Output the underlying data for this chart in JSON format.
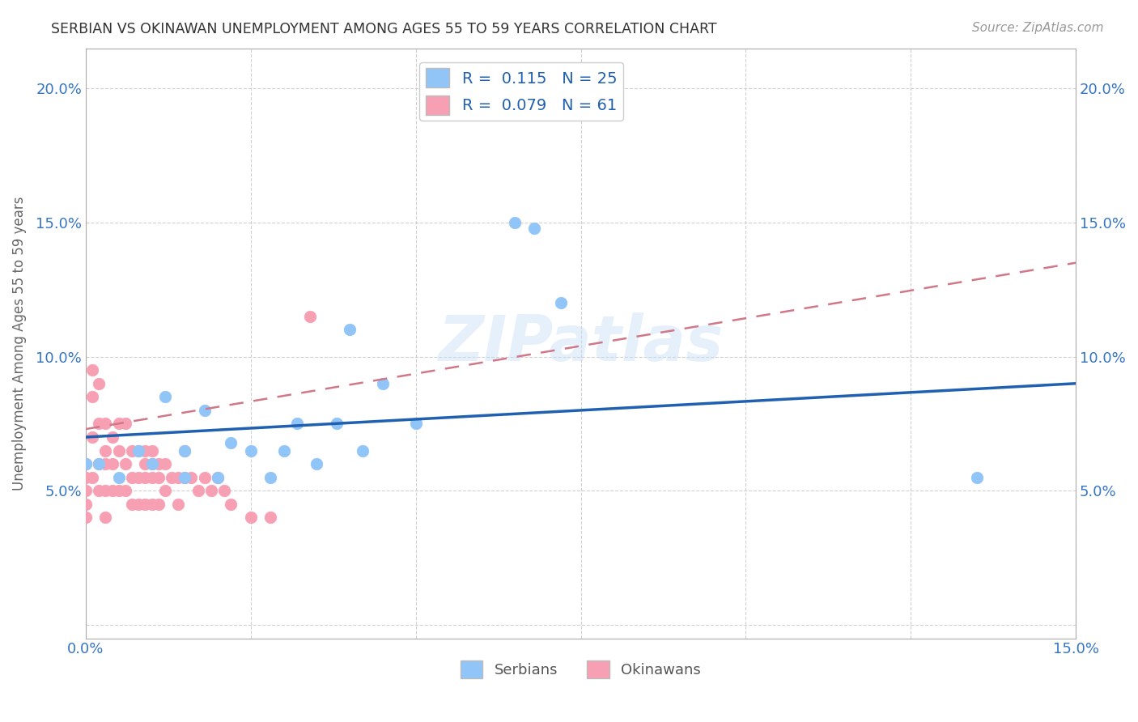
{
  "title": "SERBIAN VS OKINAWAN UNEMPLOYMENT AMONG AGES 55 TO 59 YEARS CORRELATION CHART",
  "source": "Source: ZipAtlas.com",
  "ylabel": "Unemployment Among Ages 55 to 59 years",
  "xlim": [
    0.0,
    0.15
  ],
  "ylim": [
    -0.005,
    0.215
  ],
  "xticks": [
    0.0,
    0.025,
    0.05,
    0.075,
    0.1,
    0.125,
    0.15
  ],
  "yticks": [
    0.0,
    0.05,
    0.1,
    0.15,
    0.2
  ],
  "ytick_labels": [
    "",
    "5.0%",
    "10.0%",
    "15.0%",
    "20.0%"
  ],
  "xtick_labels": [
    "0.0%",
    "",
    "",
    "",
    "",
    "",
    "15.0%"
  ],
  "serbian_R": 0.115,
  "serbian_N": 25,
  "okinawan_R": 0.079,
  "okinawan_N": 61,
  "serbian_color": "#92c5f7",
  "okinawan_color": "#f7a0b4",
  "serbian_line_color": "#2060b0",
  "okinawan_line_color": "#d07888",
  "watermark": "ZIPatlas",
  "serbian_x": [
    0.0,
    0.002,
    0.005,
    0.008,
    0.01,
    0.012,
    0.015,
    0.015,
    0.018,
    0.02,
    0.022,
    0.025,
    0.028,
    0.03,
    0.032,
    0.035,
    0.038,
    0.04,
    0.042,
    0.045,
    0.05,
    0.065,
    0.068,
    0.072,
    0.135
  ],
  "serbian_y": [
    0.06,
    0.06,
    0.055,
    0.065,
    0.06,
    0.085,
    0.065,
    0.055,
    0.08,
    0.055,
    0.068,
    0.065,
    0.055,
    0.065,
    0.075,
    0.06,
    0.075,
    0.11,
    0.065,
    0.09,
    0.075,
    0.15,
    0.148,
    0.12,
    0.055
  ],
  "okinawan_x": [
    0.0,
    0.0,
    0.0,
    0.0,
    0.0,
    0.001,
    0.001,
    0.001,
    0.001,
    0.002,
    0.002,
    0.002,
    0.002,
    0.003,
    0.003,
    0.003,
    0.003,
    0.003,
    0.004,
    0.004,
    0.004,
    0.005,
    0.005,
    0.005,
    0.006,
    0.006,
    0.006,
    0.007,
    0.007,
    0.007,
    0.008,
    0.008,
    0.008,
    0.009,
    0.009,
    0.009,
    0.009,
    0.01,
    0.01,
    0.01,
    0.01,
    0.011,
    0.011,
    0.011,
    0.012,
    0.012,
    0.013,
    0.014,
    0.014,
    0.015,
    0.015,
    0.016,
    0.017,
    0.018,
    0.019,
    0.02,
    0.021,
    0.022,
    0.025,
    0.028,
    0.034
  ],
  "okinawan_y": [
    0.06,
    0.055,
    0.05,
    0.045,
    0.04,
    0.095,
    0.085,
    0.07,
    0.055,
    0.09,
    0.075,
    0.06,
    0.05,
    0.075,
    0.065,
    0.06,
    0.05,
    0.04,
    0.07,
    0.06,
    0.05,
    0.075,
    0.065,
    0.05,
    0.075,
    0.06,
    0.05,
    0.065,
    0.055,
    0.045,
    0.065,
    0.055,
    0.045,
    0.065,
    0.06,
    0.055,
    0.045,
    0.065,
    0.06,
    0.055,
    0.045,
    0.06,
    0.055,
    0.045,
    0.06,
    0.05,
    0.055,
    0.055,
    0.045,
    0.065,
    0.055,
    0.055,
    0.05,
    0.055,
    0.05,
    0.055,
    0.05,
    0.045,
    0.04,
    0.04,
    0.115
  ],
  "serbian_trend_x": [
    0.0,
    0.15
  ],
  "serbian_trend_y": [
    0.07,
    0.09
  ],
  "okinawan_trend_x": [
    0.0,
    0.15
  ],
  "okinawan_trend_y": [
    0.073,
    0.135
  ]
}
